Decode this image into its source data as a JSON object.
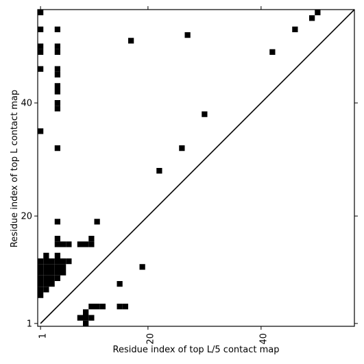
{
  "chart_data": {
    "type": "scatter",
    "xlabel": "Residue index of top L/5 contact map",
    "ylabel": "Residue index of top L contact map",
    "xlim": [
      0.5,
      56.5
    ],
    "ylim": [
      0.5,
      56.5
    ],
    "x_ticks": [
      1,
      20,
      40
    ],
    "y_ticks": [
      1,
      20,
      40
    ],
    "x_tick_labels": [
      "1",
      "20",
      "40"
    ],
    "y_tick_labels": [
      "1",
      "20",
      "40"
    ],
    "grid": false,
    "diagonal": true,
    "marker_color": "#000000",
    "points": [
      [
        1,
        56
      ],
      [
        1,
        53
      ],
      [
        1,
        50
      ],
      [
        1,
        49
      ],
      [
        1,
        46
      ],
      [
        1,
        35
      ],
      [
        4,
        53
      ],
      [
        4,
        50
      ],
      [
        4,
        49
      ],
      [
        4,
        46
      ],
      [
        4,
        45
      ],
      [
        4,
        43
      ],
      [
        4,
        42
      ],
      [
        4,
        40
      ],
      [
        4,
        39
      ],
      [
        4,
        32
      ],
      [
        17,
        51
      ],
      [
        27,
        52
      ],
      [
        42,
        49
      ],
      [
        46,
        53
      ],
      [
        49,
        55
      ],
      [
        50,
        56
      ],
      [
        30,
        38
      ],
      [
        26,
        32
      ],
      [
        22,
        28
      ],
      [
        4,
        19
      ],
      [
        11,
        19
      ],
      [
        4,
        16
      ],
      [
        4,
        15
      ],
      [
        5,
        15
      ],
      [
        6,
        15
      ],
      [
        8,
        15
      ],
      [
        9,
        15
      ],
      [
        10,
        15
      ],
      [
        10,
        16
      ],
      [
        1,
        12
      ],
      [
        2,
        12
      ],
      [
        3,
        12
      ],
      [
        4,
        12
      ],
      [
        5,
        12
      ],
      [
        6,
        12
      ],
      [
        1,
        11
      ],
      [
        2,
        11
      ],
      [
        3,
        11
      ],
      [
        4,
        11
      ],
      [
        5,
        11
      ],
      [
        1,
        10
      ],
      [
        2,
        10
      ],
      [
        3,
        10
      ],
      [
        4,
        10
      ],
      [
        5,
        10
      ],
      [
        1,
        9
      ],
      [
        2,
        9
      ],
      [
        3,
        9
      ],
      [
        4,
        9
      ],
      [
        1,
        8
      ],
      [
        2,
        8
      ],
      [
        3,
        8
      ],
      [
        1,
        7
      ],
      [
        2,
        7
      ],
      [
        1,
        6
      ],
      [
        2,
        13
      ],
      [
        4,
        13
      ],
      [
        19,
        11
      ],
      [
        15,
        8
      ],
      [
        10,
        4
      ],
      [
        11,
        4
      ],
      [
        12,
        4
      ],
      [
        15,
        4
      ],
      [
        16,
        4
      ],
      [
        9,
        3
      ],
      [
        8,
        2
      ],
      [
        9,
        2
      ],
      [
        10,
        2
      ],
      [
        9,
        1
      ]
    ]
  }
}
